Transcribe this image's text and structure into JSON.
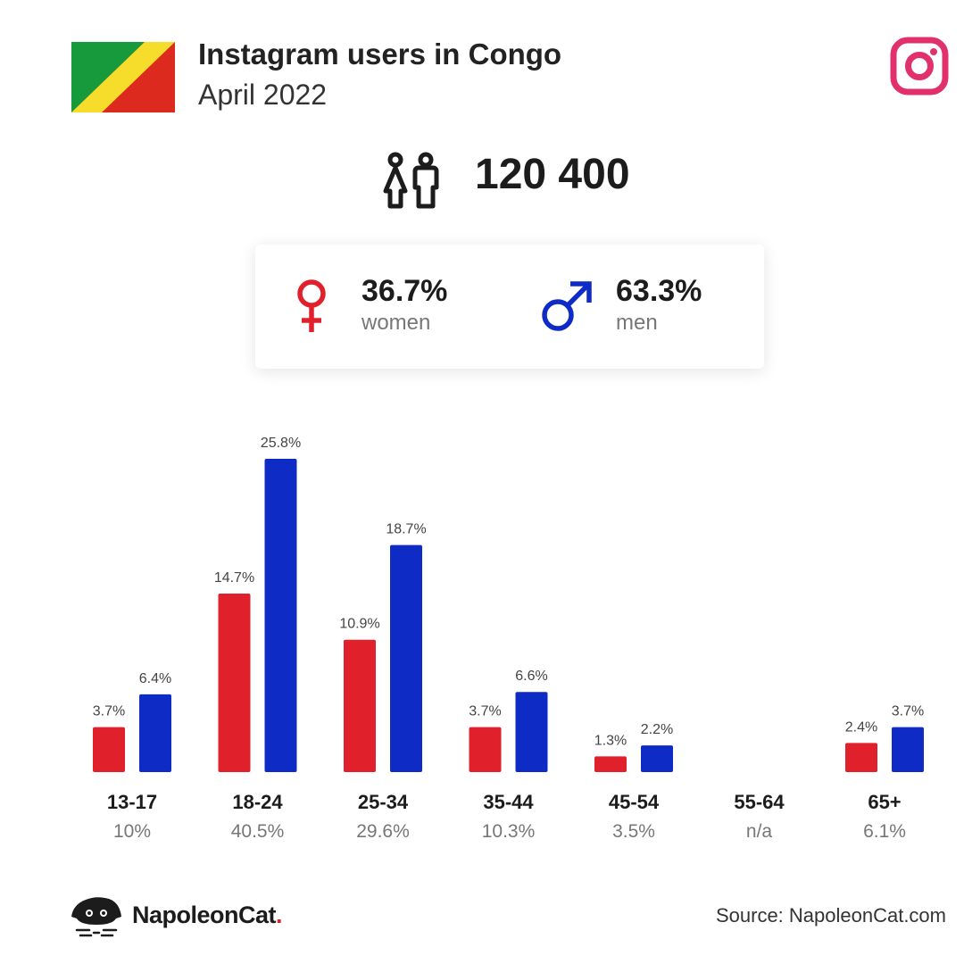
{
  "header": {
    "title": "Instagram users in Congo",
    "subtitle": "April 2022"
  },
  "summary": {
    "total": "120 400",
    "women_pct": "36.7%",
    "women_label": "women",
    "men_pct": "63.3%",
    "men_label": "men"
  },
  "colors": {
    "women": "#e0212b",
    "men": "#0f2bc6",
    "instagram": "#e1306c",
    "flag_green": "#179a3b",
    "flag_yellow": "#f7dd2b",
    "flag_red": "#dc2a1f"
  },
  "icons": {
    "flag": "congo-flag-icon",
    "platform": "instagram-icon",
    "people": "people-icon",
    "female": "female-symbol-icon",
    "male": "male-symbol-icon",
    "brand": "napoleoncat-logo-icon"
  },
  "chart_data": {
    "type": "bar",
    "categories": [
      "13-17",
      "18-24",
      "25-34",
      "35-44",
      "45-54",
      "55-64",
      "65+"
    ],
    "category_totals": [
      "10%",
      "40.5%",
      "29.6%",
      "10.3%",
      "3.5%",
      "n/a",
      "6.1%"
    ],
    "series": [
      {
        "key": "women",
        "values": [
          3.7,
          14.7,
          10.9,
          3.7,
          1.3,
          null,
          2.4
        ],
        "labels": [
          "3.7%",
          "14.7%",
          "10.9%",
          "3.7%",
          "1.3%",
          "",
          "2.4%"
        ]
      },
      {
        "key": "men",
        "values": [
          6.4,
          25.8,
          18.7,
          6.6,
          2.2,
          null,
          3.7
        ],
        "labels": [
          "6.4%",
          "25.8%",
          "18.7%",
          "6.6%",
          "2.2%",
          "",
          "3.7%"
        ]
      }
    ],
    "ylim": [
      0,
      25.8
    ],
    "grid": false,
    "legend": "none"
  },
  "footer": {
    "brand": "NapoleonCat",
    "brand_dot": ".",
    "source": "Source: NapoleonCat.com"
  }
}
